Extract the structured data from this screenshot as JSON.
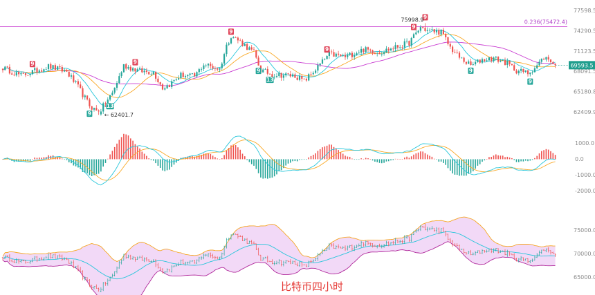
{
  "chart_data": {
    "type": "candlestick",
    "caption": "比特币四小时",
    "colors": {
      "up": "#26a69a",
      "down": "#ef5350",
      "ma_fast": "#26c6da",
      "ma_mid": "#f9a825",
      "ma_slow": "#c93bd1",
      "fib": "#c93bd1",
      "band_fill": "#f2d9f7",
      "band_upper": "#f5a623",
      "band_lower": "#b0289b",
      "band_mid": "#26c6da",
      "macd_dif": "#26c6da",
      "macd_dea": "#f9a825",
      "price_tag": "#1f9e8e",
      "caption": "#e53935"
    },
    "main_panel": {
      "y_ticks": [
        "77598.5",
        "74290.5",
        "71123.5",
        "68091.5",
        "65180.8",
        "62409.9"
      ],
      "y_range": [
        61500,
        78200
      ],
      "fib_label": "0.236(75472.4)",
      "fib_value": 75472.4,
      "last_price": "69593.5",
      "high_label": "75998.9",
      "low_label": "← 62401.7",
      "td_markers": [
        {
          "i": 13,
          "type": "sell",
          "label": "9"
        },
        {
          "i": 38,
          "type": "buy",
          "label": "9"
        },
        {
          "i": 47,
          "type": "buy",
          "label": "13"
        },
        {
          "i": 58,
          "type": "sell",
          "label": "9"
        },
        {
          "i": 100,
          "type": "sell",
          "label": "9"
        },
        {
          "i": 112,
          "type": "buy",
          "label": "9"
        },
        {
          "i": 117,
          "type": "buy",
          "label": "13"
        },
        {
          "i": 142,
          "type": "sell",
          "label": "9"
        },
        {
          "i": 180,
          "type": "sell",
          "label": "9"
        },
        {
          "i": 185,
          "type": "sell",
          "label": "9"
        },
        {
          "i": 205,
          "type": "buy",
          "label": "9"
        },
        {
          "i": 231,
          "type": "buy",
          "label": "9"
        }
      ]
    },
    "macd_panel": {
      "y_ticks": [
        "1000.0",
        "0.0",
        "-1000.0",
        "-2000.0"
      ],
      "y_range": [
        -2200,
        1300
      ]
    },
    "band_panel": {
      "y_ticks": [
        "75000.0",
        "70000.0",
        "65000.0"
      ],
      "y_range": [
        63800,
        76800
      ]
    },
    "key_points": [
      [
        0,
        69400
      ],
      [
        8,
        68200
      ],
      [
        20,
        69600
      ],
      [
        28,
        68800
      ],
      [
        33,
        66500
      ],
      [
        38,
        63800
      ],
      [
        42,
        62700
      ],
      [
        48,
        65600
      ],
      [
        53,
        69700
      ],
      [
        60,
        68900
      ],
      [
        66,
        68700
      ],
      [
        70,
        66400
      ],
      [
        73,
        66900
      ],
      [
        78,
        68300
      ],
      [
        84,
        68100
      ],
      [
        88,
        69900
      ],
      [
        95,
        69200
      ],
      [
        98,
        72600
      ],
      [
        100,
        74200
      ],
      [
        105,
        73000
      ],
      [
        110,
        71600
      ],
      [
        113,
        69000
      ],
      [
        118,
        68400
      ],
      [
        128,
        68200
      ],
      [
        132,
        67400
      ],
      [
        138,
        69500
      ],
      [
        143,
        71400
      ],
      [
        150,
        71000
      ],
      [
        158,
        72100
      ],
      [
        165,
        71700
      ],
      [
        172,
        72400
      ],
      [
        178,
        73100
      ],
      [
        183,
        75400
      ],
      [
        186,
        74900
      ],
      [
        192,
        74700
      ],
      [
        196,
        72400
      ],
      [
        200,
        70900
      ],
      [
        205,
        69700
      ],
      [
        210,
        70600
      ],
      [
        215,
        70800
      ],
      [
        220,
        70200
      ],
      [
        225,
        69000
      ],
      [
        230,
        68600
      ],
      [
        234,
        69700
      ],
      [
        237,
        70900
      ],
      [
        240,
        70500
      ],
      [
        242,
        69600
      ]
    ]
  }
}
